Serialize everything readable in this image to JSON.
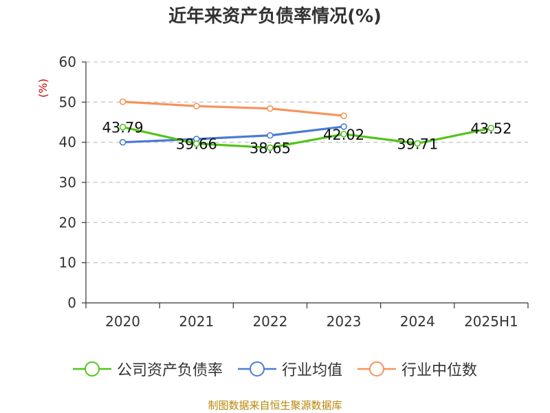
{
  "title": "近年来资产负债率情况(%)",
  "source": "制图数据来自恒生聚源数据库",
  "chart_data": {
    "type": "line",
    "title": "近年来资产负债率情况(%)",
    "ylabel": "(%)",
    "xlabel": "",
    "ylim": [
      0,
      60
    ],
    "yticks": [
      "0",
      "10",
      "20",
      "30",
      "40",
      "50",
      "60"
    ],
    "categories": [
      "2020",
      "2021",
      "2022",
      "2023",
      "2024",
      "2025H1"
    ],
    "grid": "horizontal dashed",
    "legend_position": "bottom",
    "series": [
      {
        "name": "公司资产负债率",
        "color": "#52c41a",
        "values": [
          43.79,
          39.66,
          38.65,
          42.02,
          39.71,
          43.52
        ],
        "labels": [
          "43.79",
          "39.66",
          "38.65",
          "42.02",
          "39.71",
          "43.52"
        ]
      },
      {
        "name": "行业均值",
        "color": "#4a7bd4",
        "values": [
          40.0,
          40.8,
          41.7,
          43.9,
          null,
          null
        ]
      },
      {
        "name": "行业中位数",
        "color": "#f79259",
        "values": [
          50.1,
          49.0,
          48.4,
          46.6,
          null,
          null
        ]
      }
    ]
  }
}
